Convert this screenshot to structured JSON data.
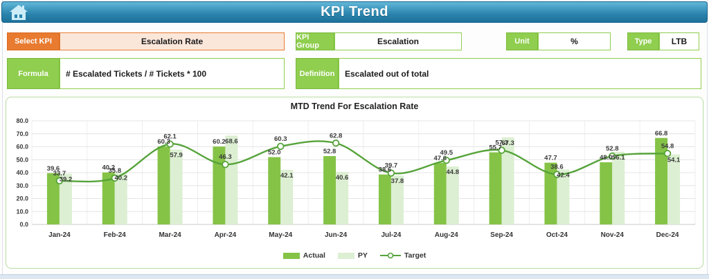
{
  "header": {
    "title": "KPI Trend",
    "home_icon": "home-icon"
  },
  "controls": {
    "select_kpi": {
      "label": "Select KPI",
      "value": "Escalation Rate"
    },
    "kpi_group": {
      "label": "KPI Group",
      "value": "Escalation"
    },
    "unit": {
      "label": "Unit",
      "value": "%"
    },
    "type": {
      "label": "Type",
      "value": "LTB"
    },
    "formula": {
      "label": "Formula",
      "value": "# Escalated Tickets / # Tickets * 100"
    },
    "definition": {
      "label": "Definition",
      "value": "Escalated out of total"
    }
  },
  "chart_data": {
    "type": "combo-bar-line",
    "title": "MTD Trend For Escalation Rate",
    "categories": [
      "Jan-24",
      "Feb-24",
      "Mar-24",
      "Apr-24",
      "May-24",
      "Jun-24",
      "Jul-24",
      "Aug-24",
      "Sep-24",
      "Oct-24",
      "Nov-24",
      "Dec-24"
    ],
    "series": [
      {
        "name": "Actual",
        "type": "bar",
        "color": "#85c347",
        "values": [
          39.6,
          40.2,
          60.3,
          60.2,
          52.0,
          52.8,
          38.6,
          47.6,
          55.7,
          47.7,
          48.0,
          66.8
        ]
      },
      {
        "name": "PY",
        "type": "bar",
        "color": "#dcefd2",
        "values": [
          39.2,
          40.2,
          57.9,
          68.6,
          42.1,
          40.6,
          37.8,
          44.8,
          67.3,
          42.4,
          56.1,
          54.1
        ]
      },
      {
        "name": "Target",
        "type": "line",
        "color": "#55a339",
        "marker": "white-circle",
        "values": [
          33.7,
          35.8,
          62.1,
          46.3,
          60.3,
          62.8,
          39.7,
          49.5,
          57.3,
          38.6,
          52.8,
          54.8
        ]
      }
    ],
    "ylim": [
      0,
      80
    ],
    "ytick_step": 10,
    "ytick_labels": [
      "0.0",
      "10.0",
      "20.0",
      "30.0",
      "40.0",
      "50.0",
      "60.0",
      "70.0",
      "80.0"
    ],
    "grid": true,
    "legend_position": "bottom",
    "label_color": "#3a3a3a"
  },
  "colors": {
    "header_top": "#63b7d8",
    "header_bottom": "#1e719a",
    "orange": "#e87b30",
    "orange_fill": "#fbe7da",
    "green_label": "#8fce4e",
    "panel_border": "#b9dca2",
    "home_icon": "#cdedf8"
  }
}
